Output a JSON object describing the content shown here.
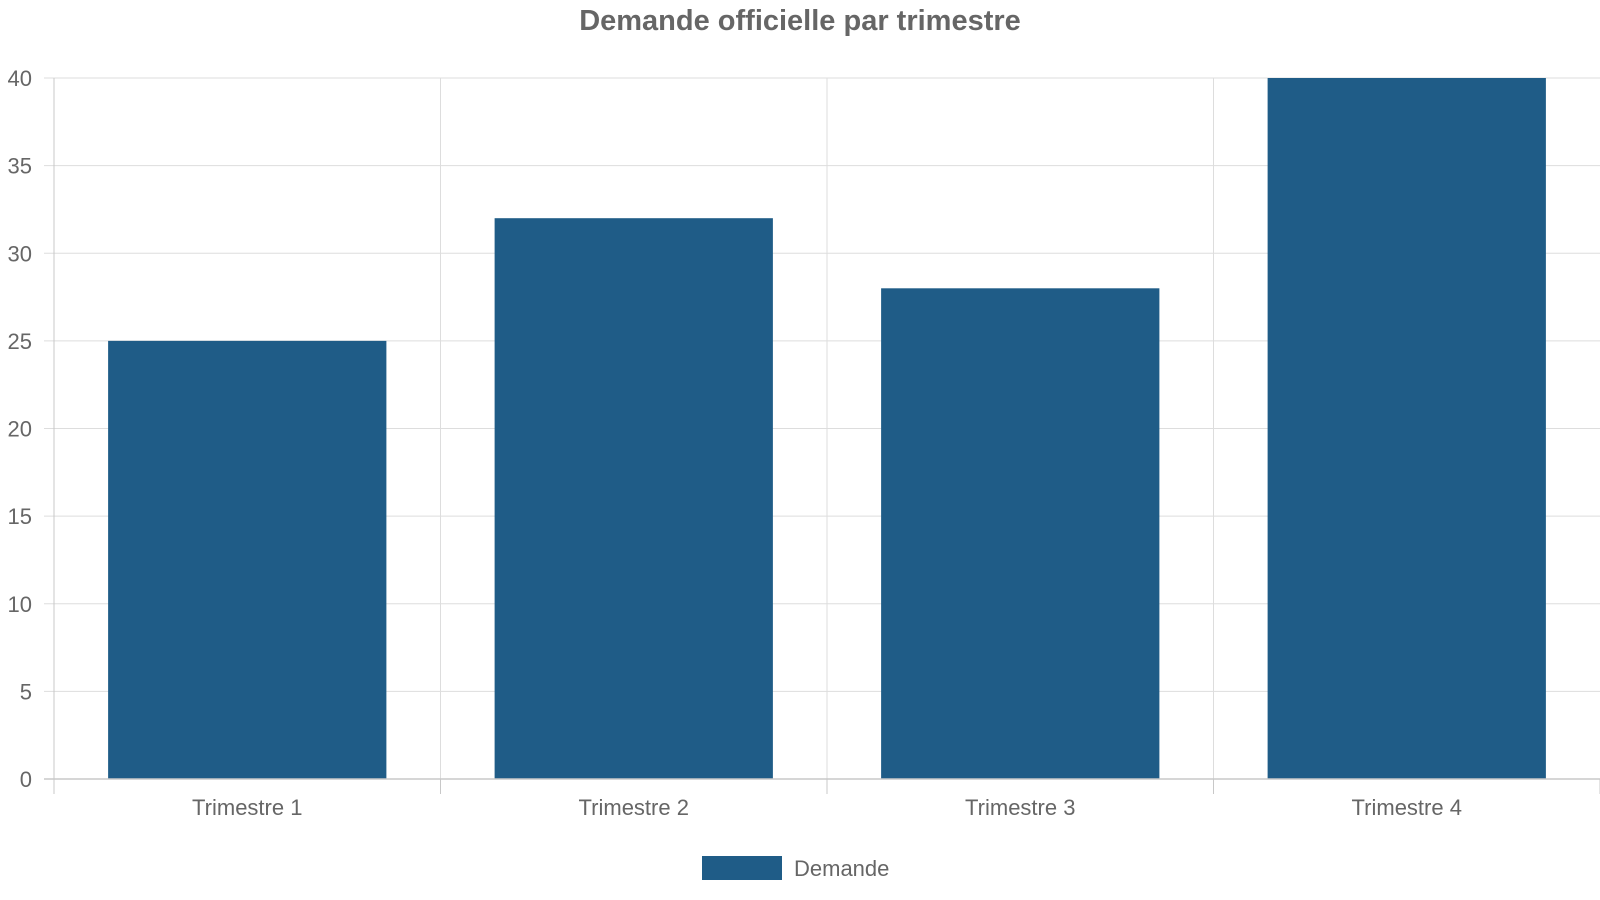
{
  "chart_data": {
    "type": "bar",
    "title": "Demande officielle par trimestre",
    "categories": [
      "Trimestre 1",
      "Trimestre 2",
      "Trimestre 3",
      "Trimestre 4"
    ],
    "series": [
      {
        "name": "Demande",
        "values": [
          25,
          32,
          28,
          40
        ],
        "color": "#1f5c87"
      }
    ],
    "xlabel": "",
    "ylabel": "",
    "ylim": [
      0,
      40
    ],
    "yticks": [
      0,
      5,
      10,
      15,
      20,
      25,
      30,
      35,
      40
    ],
    "grid": true,
    "legend_position": "bottom-center",
    "colors": {
      "gridline": "#dddddd",
      "axis": "#c8c8c8",
      "text": "#666666"
    }
  }
}
